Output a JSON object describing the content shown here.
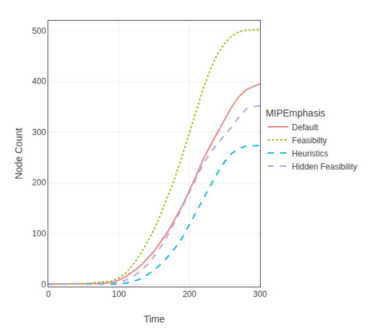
{
  "chart_data": {
    "type": "line",
    "xlabel": "Time",
    "ylabel": "Node Count",
    "legend_title": "MIPEmphasis",
    "x": [
      0,
      10,
      20,
      30,
      40,
      50,
      60,
      70,
      80,
      90,
      100,
      110,
      120,
      130,
      140,
      150,
      160,
      170,
      180,
      190,
      200,
      210,
      220,
      230,
      240,
      250,
      260,
      270,
      280,
      290,
      300
    ],
    "xlim": [
      0,
      300
    ],
    "ylim": [
      -5,
      520
    ],
    "xticks": [
      0,
      100,
      200,
      300
    ],
    "yticks": [
      0,
      100,
      200,
      300,
      400,
      500
    ],
    "grid": true,
    "legend": "right",
    "series": [
      {
        "name": "Default",
        "color": "#f08080",
        "line_style": "solid",
        "values": [
          0,
          0,
          0,
          0,
          0,
          0,
          1,
          1,
          2,
          3,
          8,
          15,
          25,
          35,
          50,
          65,
          85,
          105,
          130,
          155,
          185,
          215,
          248,
          275,
          300,
          325,
          350,
          370,
          383,
          390,
          395
        ]
      },
      {
        "name": "Feasibilty",
        "color": "#8fbc00",
        "line_style": "dotted",
        "values": [
          0,
          0,
          0,
          0,
          1,
          1,
          2,
          3,
          4,
          6,
          12,
          22,
          38,
          58,
          82,
          108,
          140,
          175,
          212,
          255,
          300,
          345,
          388,
          425,
          455,
          475,
          490,
          498,
          501,
          502,
          503
        ]
      },
      {
        "name": "Heuristics",
        "color": "#00bcd4",
        "line_style": "dashed",
        "values": [
          0,
          0,
          0,
          0,
          0,
          0,
          0,
          0,
          0,
          0,
          0,
          2,
          5,
          10,
          18,
          28,
          40,
          55,
          72,
          92,
          118,
          145,
          170,
          195,
          220,
          242,
          258,
          268,
          272,
          273,
          274
        ]
      },
      {
        "name": "Hidden Feasibility",
        "color": "#b39ddb",
        "line_style": "dashed",
        "values": [
          0,
          0,
          0,
          0,
          0,
          0,
          0,
          0,
          1,
          2,
          4,
          8,
          15,
          25,
          38,
          55,
          75,
          98,
          125,
          152,
          182,
          210,
          238,
          260,
          278,
          295,
          310,
          330,
          345,
          350,
          352
        ]
      }
    ]
  }
}
